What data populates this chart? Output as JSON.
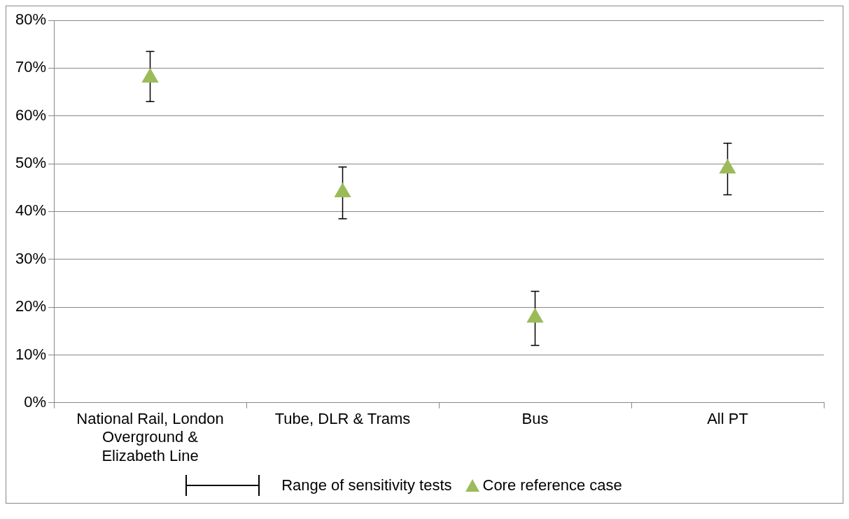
{
  "chart_data": {
    "type": "scatter",
    "categories": [
      "National Rail, London Overground & Elizabeth Line",
      "Tube, DLR & Trams",
      "Bus",
      "All PT"
    ],
    "series": [
      {
        "name": "Core reference case",
        "color": "#9bbb59",
        "values": [
          68,
          44,
          17.8,
          49
        ],
        "errors": [
          [
            63,
            73.5
          ],
          [
            38.5,
            49.3
          ],
          [
            12,
            23.3
          ],
          [
            43.5,
            54.3
          ]
        ]
      }
    ],
    "marker": "triangle",
    "ylim": [
      0,
      80
    ],
    "yticks": [
      {
        "value": 0,
        "label": "0%"
      },
      {
        "value": 10,
        "label": "10%"
      },
      {
        "value": 20,
        "label": "20%"
      },
      {
        "value": 30,
        "label": "30%"
      },
      {
        "value": 40,
        "label": "40%"
      },
      {
        "value": 50,
        "label": "50%"
      },
      {
        "value": 60,
        "label": "60%"
      },
      {
        "value": 70,
        "label": "70%"
      },
      {
        "value": 80,
        "label": "80%"
      }
    ],
    "grid": "y",
    "legend": "bottom",
    "annotations": [
      "Range of sensitivity tests"
    ]
  }
}
